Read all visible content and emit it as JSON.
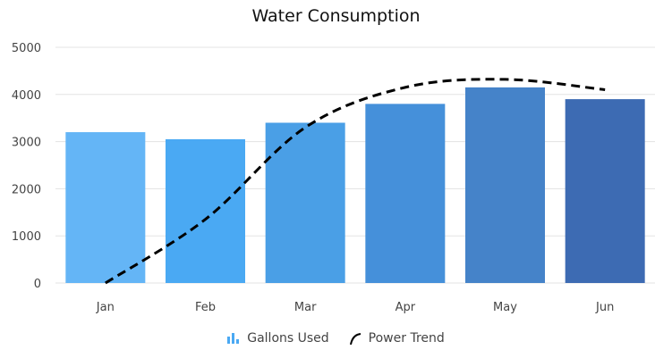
{
  "chart_data": {
    "type": "bar",
    "title": "Water Consumption",
    "categories": [
      "Jan",
      "Feb",
      "Mar",
      "Apr",
      "May",
      "Jun"
    ],
    "series": [
      {
        "name": "Gallons Used",
        "type": "bar",
        "values": [
          3200,
          3050,
          3400,
          3800,
          4150,
          3900
        ],
        "colors": [
          "#64b5f6",
          "#4aa9f3",
          "#4a9fe6",
          "#4590da",
          "#4583c9",
          "#3d6bb3"
        ]
      },
      {
        "name": "Power Trend",
        "type": "line",
        "style": "dashed",
        "color": "#000000",
        "values": [
          0,
          1350,
          3300,
          4150,
          4320,
          4100
        ]
      }
    ],
    "ylim": [
      0,
      5000
    ],
    "yticks": [
      0,
      1000,
      2000,
      3000,
      4000,
      5000
    ],
    "grid": true,
    "legend": "bottom"
  }
}
